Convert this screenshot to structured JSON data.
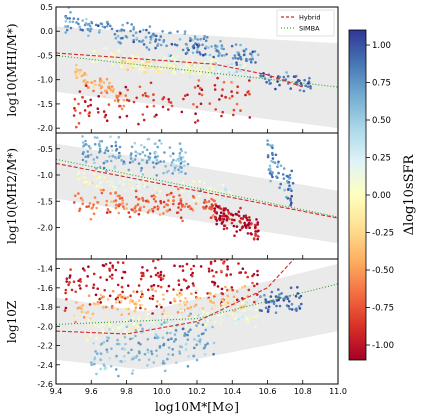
{
  "chart_data": {
    "type": "scatter",
    "x_label": "log10M*[M⊙]",
    "x_range": [
      9.4,
      11.0
    ],
    "x_ticks": [
      "9.4",
      "9.6",
      "9.8",
      "10.0",
      "10.2",
      "10.4",
      "10.6",
      "10.8",
      "11.0"
    ],
    "colorbar": {
      "label": "Δlog10sSFR",
      "range": [
        -1.1,
        1.1
      ],
      "ticks": [
        "1.00",
        "0.75",
        "0.50",
        "0.25",
        "0.00",
        "-0.25",
        "-0.50",
        "-0.75",
        "-1.00"
      ],
      "colormap": "RdYlBu"
    },
    "legend": {
      "placement": "top-right of top panel",
      "entries": [
        {
          "label": "Hybrid",
          "color": "#d62728",
          "style": "dashed"
        },
        {
          "label": "SIMBA",
          "color": "#2ca02c",
          "style": "dotted"
        }
      ]
    },
    "panels": [
      {
        "id": "hi",
        "y_label": "log10(MHI/M*)",
        "y_range": [
          -2.1,
          0.5
        ],
        "y_ticks": [
          "0.5",
          "0.0",
          "-0.5",
          "-1.0",
          "-1.5",
          "-2.0"
        ],
        "hybrid_line": [
          [
            9.4,
            -0.45
          ],
          [
            10.3,
            -0.68
          ],
          [
            10.6,
            -0.9
          ],
          [
            10.8,
            -1.15
          ]
        ],
        "simba_line": [
          [
            9.4,
            -0.5
          ],
          [
            11.0,
            -1.15
          ]
        ],
        "band": {
          "upper": [
            [
              9.4,
              0.1
            ],
            [
              11.0,
              -0.25
            ]
          ],
          "lower": [
            [
              9.4,
              -1.25
            ],
            [
              11.0,
              -2.0
            ]
          ]
        }
      },
      {
        "id": "h2",
        "y_label": "log10(MH2/M*)",
        "y_range": [
          -2.6,
          -0.2
        ],
        "y_ticks": [
          "-0.5",
          "-1.0",
          "-1.5",
          "-2.0"
        ],
        "hybrid_line": [
          [
            9.4,
            -0.78
          ],
          [
            11.0,
            -1.82
          ]
        ],
        "simba_line": [
          [
            9.4,
            -0.7
          ],
          [
            11.0,
            -1.8
          ]
        ],
        "band": {
          "upper": [
            [
              9.4,
              -0.4
            ],
            [
              11.0,
              -1.3
            ]
          ],
          "lower": [
            [
              9.4,
              -1.45
            ],
            [
              11.0,
              -2.3
            ]
          ]
        }
      },
      {
        "id": "z",
        "y_label": "log10Z",
        "y_range": [
          -2.6,
          -1.3
        ],
        "y_ticks": [
          "-1.4",
          "-1.6",
          "-1.8",
          "-2.0",
          "-2.2",
          "-2.4",
          "-2.6"
        ],
        "hybrid_line": [
          [
            9.4,
            -2.05
          ],
          [
            9.8,
            -2.08
          ],
          [
            10.2,
            -1.95
          ],
          [
            10.6,
            -1.6
          ],
          [
            10.75,
            -1.3
          ]
        ],
        "simba_line": [
          [
            9.4,
            -1.98
          ],
          [
            10.2,
            -1.92
          ],
          [
            11.0,
            -1.56
          ]
        ],
        "band": {
          "upper": [
            [
              9.4,
              -1.7
            ],
            [
              9.9,
              -1.85
            ],
            [
              11.0,
              -1.35
            ]
          ],
          "lower": [
            [
              9.4,
              -2.35
            ],
            [
              9.9,
              -2.45
            ],
            [
              11.0,
              -2.05
            ]
          ]
        }
      }
    ],
    "clusters": [
      {
        "panel": "hi",
        "x": [
          9.45,
          10.55
        ],
        "y_center": [
          0.22,
          -0.55
        ],
        "y_spread": 0.12,
        "color_value": [
          0.7,
          0.8
        ],
        "count": 220
      },
      {
        "panel": "hi",
        "x": [
          9.6,
          10.5
        ],
        "y_center": [
          -0.55,
          -0.8
        ],
        "y_spread": 0.1,
        "color_value": [
          0.1,
          0.25
        ],
        "count": 170
      },
      {
        "panel": "hi",
        "x": [
          9.75,
          10.3
        ],
        "y_center": [
          -0.7,
          -0.78
        ],
        "y_spread": 0.07,
        "color_value": [
          -0.15,
          0.0
        ],
        "count": 110
      },
      {
        "panel": "hi",
        "x": [
          9.5,
          9.8
        ],
        "y_center": [
          -0.8,
          -1.45
        ],
        "y_spread": 0.1,
        "color_value": [
          -0.35,
          -0.55
        ],
        "count": 70
      },
      {
        "panel": "hi",
        "x": [
          9.5,
          10.5
        ],
        "y_center": [
          -1.6,
          -1.3
        ],
        "y_spread": 0.22,
        "color_value": [
          -0.9,
          -0.85
        ],
        "count": 110
      },
      {
        "panel": "hi",
        "x": [
          10.55,
          10.85
        ],
        "y_center": [
          -0.95,
          -1.1
        ],
        "y_spread": 0.1,
        "color_value": [
          0.85,
          0.95
        ],
        "count": 45
      },
      {
        "panel": "h2",
        "x": [
          9.55,
          10.15
        ],
        "y_center": [
          -0.55,
          -0.75
        ],
        "y_spread": 0.15,
        "color_value": [
          0.7,
          0.6
        ],
        "count": 160
      },
      {
        "panel": "h2",
        "x": [
          9.5,
          10.4
        ],
        "y_center": [
          -1.0,
          -1.35
        ],
        "y_spread": 0.1,
        "color_value": [
          0.05,
          0.2
        ],
        "count": 140
      },
      {
        "panel": "h2",
        "x": [
          9.5,
          10.3
        ],
        "y_center": [
          -1.55,
          -1.6
        ],
        "y_spread": 0.12,
        "color_value": [
          -0.6,
          -0.75
        ],
        "count": 160
      },
      {
        "panel": "h2",
        "x": [
          10.3,
          10.55
        ],
        "y_center": [
          -1.75,
          -2.05
        ],
        "y_spread": 0.12,
        "color_value": [
          -1.0,
          -1.0
        ],
        "count": 110
      },
      {
        "panel": "h2",
        "x": [
          10.6,
          10.75
        ],
        "y_center": [
          -0.65,
          -1.3
        ],
        "y_spread": 0.18,
        "color_value": [
          0.7,
          0.9
        ],
        "count": 60
      },
      {
        "panel": "z",
        "x": [
          9.45,
          10.55
        ],
        "y_center": [
          -1.55,
          -1.5
        ],
        "y_spread": 0.14,
        "color_value": [
          -1.0,
          -0.95
        ],
        "count": 200
      },
      {
        "panel": "z",
        "x": [
          9.5,
          10.5
        ],
        "y_center": [
          -1.8,
          -1.72
        ],
        "y_spread": 0.07,
        "color_value": [
          -0.4,
          -0.3
        ],
        "count": 140
      },
      {
        "panel": "z",
        "x": [
          9.55,
          10.55
        ],
        "y_center": [
          -2.05,
          -1.85
        ],
        "y_spread": 0.06,
        "color_value": [
          0.05,
          0.15
        ],
        "count": 170
      },
      {
        "panel": "z",
        "x": [
          9.6,
          10.3
        ],
        "y_center": [
          -2.3,
          -2.15
        ],
        "y_spread": 0.12,
        "color_value": [
          0.55,
          0.7
        ],
        "count": 160
      },
      {
        "panel": "z",
        "x": [
          10.55,
          10.8
        ],
        "y_center": [
          -1.72,
          -1.75
        ],
        "y_spread": 0.07,
        "color_value": [
          0.9,
          0.95
        ],
        "count": 55
      }
    ]
  }
}
